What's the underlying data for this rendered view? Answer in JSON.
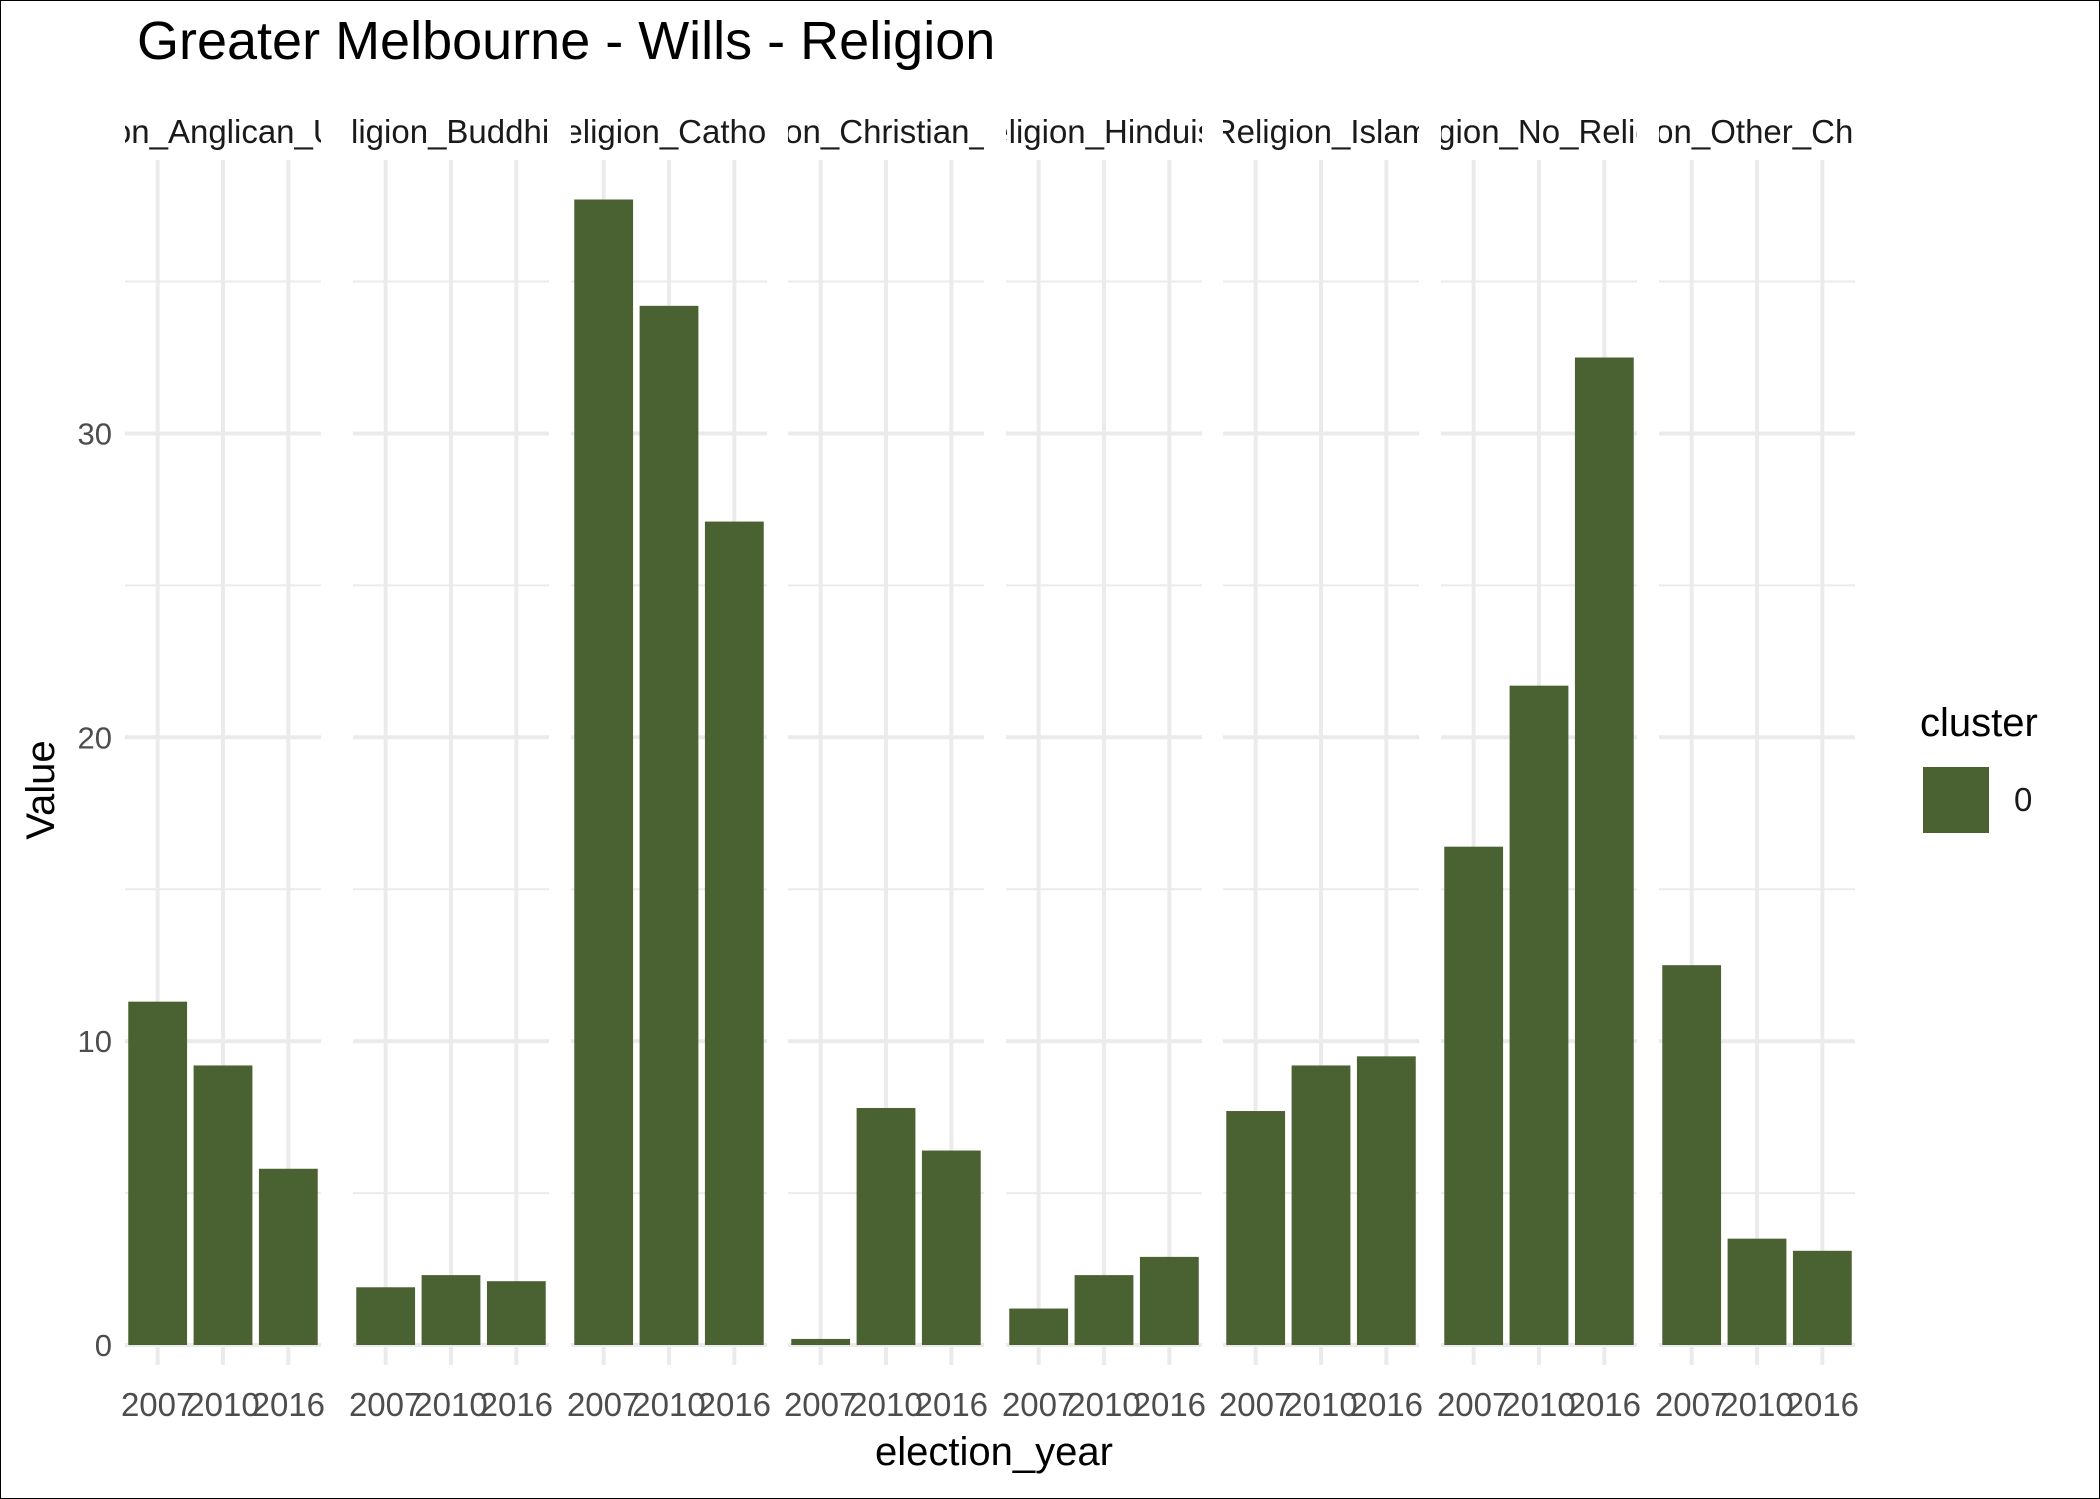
{
  "chart_data": {
    "type": "bar",
    "title": "Greater Melbourne - Wills - Religion",
    "xlabel": "election_year",
    "ylabel": "Value",
    "ylim": [
      0,
      39
    ],
    "y_ticks": [
      0,
      10,
      20,
      30
    ],
    "x": [
      "2007",
      "2010",
      "2016"
    ],
    "x_tick_labels": [
      "2007",
      "2010",
      "2016"
    ],
    "grid": true,
    "facets": [
      {
        "strip_label": "Religion_Anglican_Uniting",
        "values": [
          11.3,
          9.2,
          5.8
        ]
      },
      {
        "strip_label": "Religion_Buddhism",
        "values": [
          1.9,
          2.3,
          2.1
        ]
      },
      {
        "strip_label": "Religion_Catholic",
        "values": [
          37.7,
          34.2,
          27.1
        ]
      },
      {
        "strip_label": "Religion_Christian_Other",
        "values": [
          0.2,
          7.8,
          6.4
        ]
      },
      {
        "strip_label": "Religion_Hinduism",
        "values": [
          1.2,
          2.3,
          2.9
        ]
      },
      {
        "strip_label": "Religion_Islam",
        "values": [
          7.7,
          9.2,
          9.5
        ]
      },
      {
        "strip_label": "Religion_No_Religion",
        "values": [
          16.4,
          21.7,
          32.5
        ]
      },
      {
        "strip_label": "Religion_Other_Christian",
        "values": [
          12.5,
          3.5,
          3.1
        ]
      }
    ],
    "legend": {
      "title": "cluster",
      "position": "right",
      "entries": [
        {
          "label": "0",
          "color": "#4a6132"
        }
      ]
    }
  }
}
